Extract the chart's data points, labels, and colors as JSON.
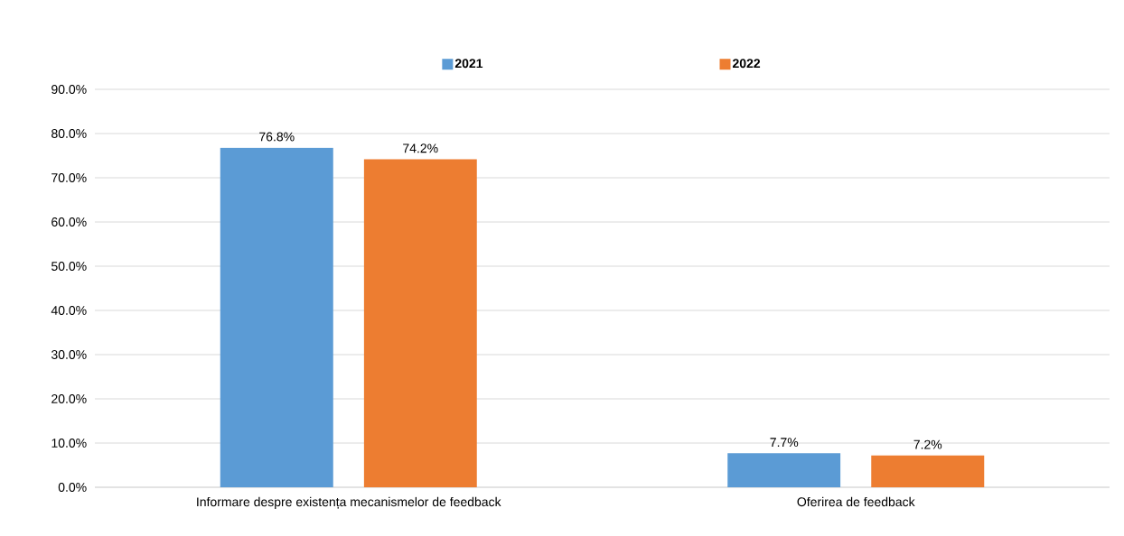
{
  "chart_data": {
    "type": "bar",
    "categories": [
      "Informare despre existența mecanismelor de feedback",
      "Oferirea de feedback"
    ],
    "series": [
      {
        "name": "2021",
        "color": "#5b9bd5",
        "values": [
          76.8,
          7.7
        ],
        "value_labels": [
          "76.8%",
          "7.7%"
        ]
      },
      {
        "name": "2022",
        "color": "#ed7d31",
        "values": [
          74.2,
          7.2
        ],
        "value_labels": [
          "74.2%",
          "7.2%"
        ]
      }
    ],
    "ylim": [
      0,
      90
    ],
    "yticks": [
      {
        "value": 0,
        "label": "0.0%"
      },
      {
        "value": 10,
        "label": "10.0%"
      },
      {
        "value": 20,
        "label": "20.0%"
      },
      {
        "value": 30,
        "label": "30.0%"
      },
      {
        "value": 40,
        "label": "40.0%"
      },
      {
        "value": 50,
        "label": "50.0%"
      },
      {
        "value": 60,
        "label": "60.0%"
      },
      {
        "value": 70,
        "label": "70.0%"
      },
      {
        "value": 80,
        "label": "80.0%"
      },
      {
        "value": 90,
        "label": "90.0%"
      }
    ],
    "grid": "y",
    "legend": "top"
  }
}
